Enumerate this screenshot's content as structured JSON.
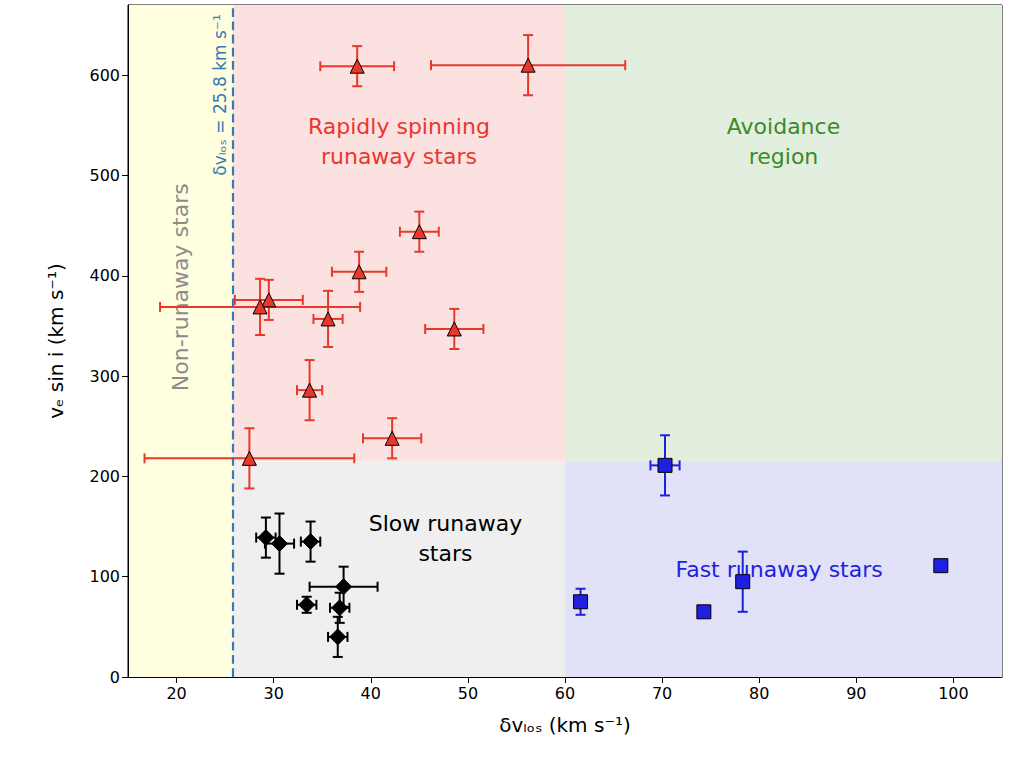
{
  "chart_data": {
    "type": "scatter",
    "xlabel": "δvₗₒₛ (km s⁻¹)",
    "ylabel": "vₑ sin i (km s⁻¹)",
    "xlim": [
      15,
      105
    ],
    "ylim": [
      0,
      670
    ],
    "xticks": [
      20,
      30,
      40,
      50,
      60,
      70,
      80,
      90,
      100
    ],
    "yticks": [
      0,
      100,
      200,
      300,
      400,
      500,
      600
    ],
    "grid": false,
    "vline": {
      "x": 25.8,
      "label": "δvₗₒₛ = 25.8 km s⁻¹",
      "color": "#3a78b5",
      "line_style": "dashed"
    },
    "regions": [
      {
        "label": "Non-runaway stars",
        "color": "#ffffe0",
        "text_color": "#8c8c8c",
        "x": [
          15,
          25.8
        ],
        "y": [
          0,
          670
        ]
      },
      {
        "label": "Rapidly spinning\nrunaway stars",
        "color": "#fce1e1",
        "text_color": "#e8382b",
        "x": [
          25.8,
          60
        ],
        "y": [
          215,
          670
        ]
      },
      {
        "label": "Avoidance\nregion",
        "color": "#e2efde",
        "text_color": "#3a8a2a",
        "x": [
          60,
          105
        ],
        "y": [
          215,
          670
        ]
      },
      {
        "label": "Slow runaway\nstars",
        "color": "#efefef",
        "text_color": "#000000",
        "x": [
          25.8,
          60
        ],
        "y": [
          0,
          215
        ]
      },
      {
        "label": "Fast runaway stars",
        "color": "#e1e1f7",
        "text_color": "#1f1fe0",
        "x": [
          60,
          105
        ],
        "y": [
          0,
          215
        ]
      }
    ],
    "series": [
      {
        "marker": "triangle",
        "color": "#e8382b",
        "x": [
          38.6,
          56.2,
          45.0,
          38.8,
          29.5,
          28.6,
          35.6,
          48.6,
          33.7,
          42.2,
          27.5
        ],
        "y": [
          609,
          610,
          444,
          404,
          376,
          369,
          357,
          347,
          286,
          238,
          218
        ],
        "xerr": [
          3.8,
          10.0,
          2.0,
          2.8,
          3.5,
          10.3,
          1.5,
          3.0,
          1.3,
          3.0,
          10.8
        ],
        "yerr": [
          20,
          30,
          20,
          20,
          20,
          28,
          28,
          20,
          30,
          20,
          30
        ]
      },
      {
        "marker": "diamond",
        "color": "#000000",
        "x": [
          29.2,
          30.6,
          33.8,
          33.4,
          37.2,
          36.8,
          36.6
        ],
        "y": [
          139,
          133,
          135,
          72,
          90,
          69,
          40
        ],
        "xerr": [
          1.0,
          1.5,
          1.0,
          1.0,
          3.5,
          1.0,
          1.0
        ],
        "yerr": [
          20,
          30,
          20,
          8,
          20,
          15,
          20
        ]
      },
      {
        "marker": "square",
        "color": "#1f1fe0",
        "x": [
          70.3,
          61.6,
          74.3,
          78.3,
          98.7
        ],
        "y": [
          211,
          75,
          65,
          95,
          111
        ],
        "xerr": [
          1.5,
          0.5,
          0.5,
          0.5,
          0.5
        ],
        "yerr": [
          30,
          13,
          5,
          30,
          5
        ]
      }
    ]
  }
}
